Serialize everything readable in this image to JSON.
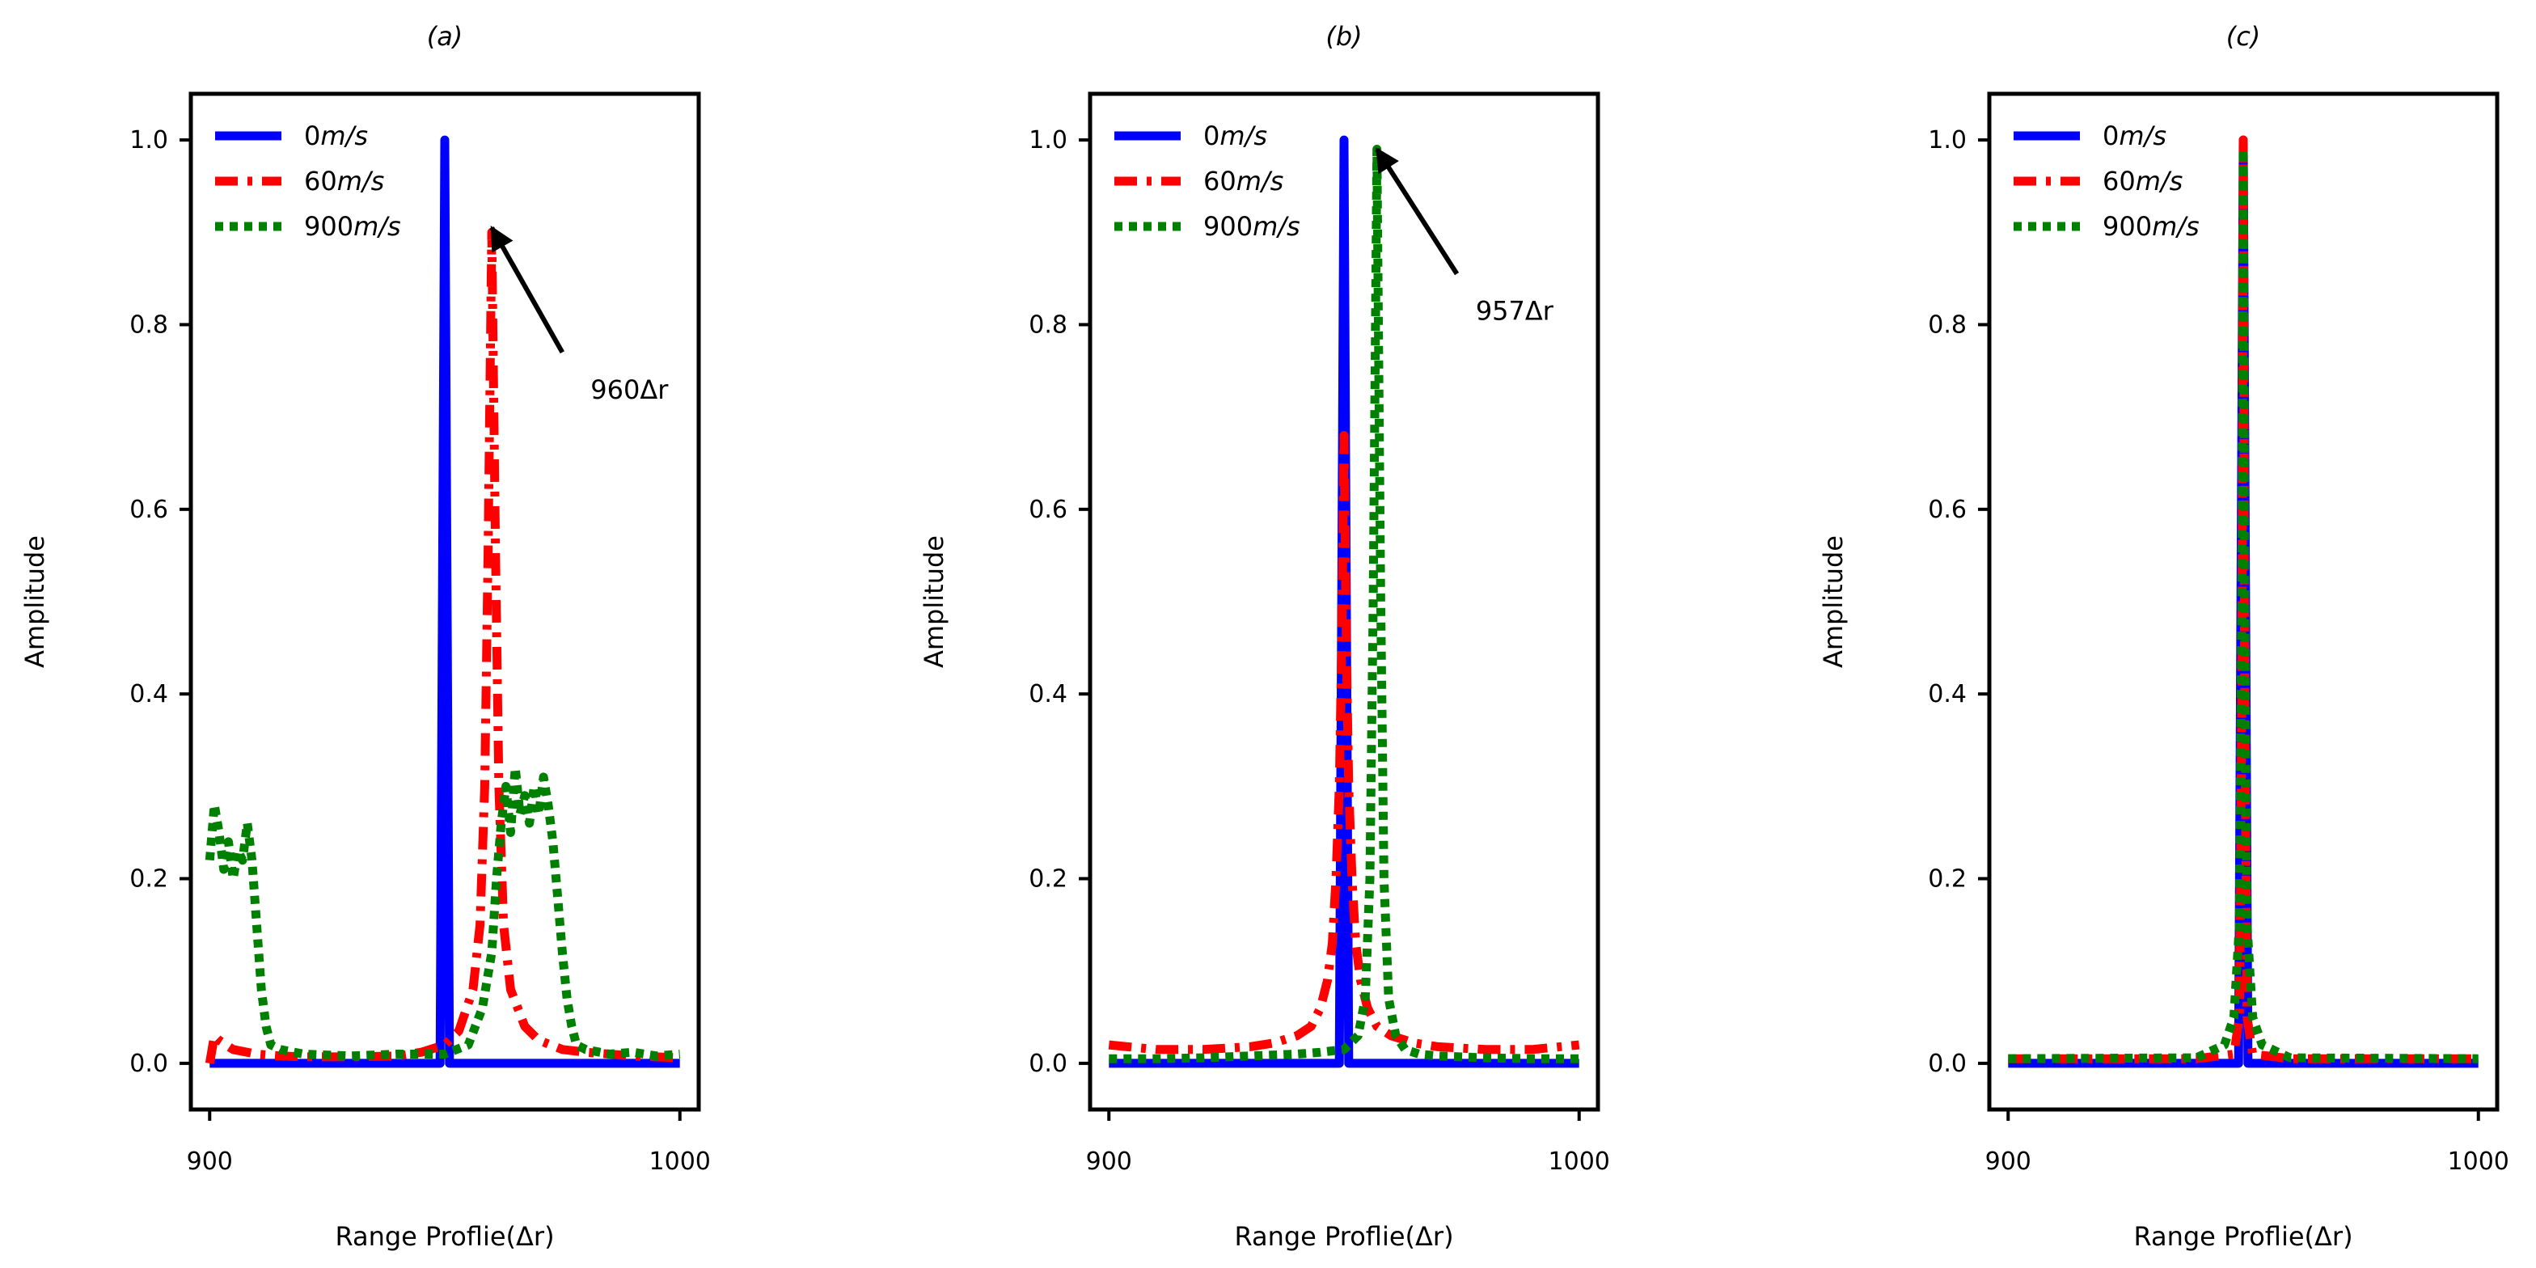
{
  "chart_data": [
    {
      "type": "line",
      "title": "(a)",
      "xlabel": "Range Proflie(Δr)",
      "ylabel": "Amplitude",
      "xlim": [
        896,
        1004
      ],
      "ylim": [
        -0.05,
        1.05
      ],
      "xticks": [
        900,
        1000
      ],
      "xtick_labels": [
        "900",
        "1000"
      ],
      "yticks": [
        0.0,
        0.2,
        0.4,
        0.6,
        0.8,
        1.0
      ],
      "ytick_labels": [
        "0.0",
        "0.2",
        "0.4",
        "0.6",
        "0.8",
        "1.0"
      ],
      "legend_position": "upper-left",
      "series": [
        {
          "name_parts": [
            "0",
            "m/s"
          ],
          "color": "#0000ff",
          "style": "solid",
          "x": [
            900,
            949,
            949.6,
            950,
            950.4,
            951,
            1000
          ],
          "y": [
            0,
            0,
            0.6,
            1.0,
            0.6,
            0,
            0
          ]
        },
        {
          "name_parts": [
            "60",
            "m/s"
          ],
          "color": "#ff0000",
          "style": "dashdot",
          "x": [
            900,
            901,
            902,
            905,
            910,
            915,
            920,
            930,
            940,
            945,
            950,
            953,
            956,
            957.5,
            958.5,
            959.2,
            960,
            960.8,
            961.5,
            962.5,
            964,
            967,
            970,
            975,
            980,
            985,
            990,
            1000
          ],
          "y": [
            0.0,
            0.03,
            0.025,
            0.015,
            0.01,
            0.008,
            0.007,
            0.007,
            0.008,
            0.012,
            0.02,
            0.035,
            0.08,
            0.15,
            0.3,
            0.55,
            0.9,
            0.55,
            0.3,
            0.15,
            0.08,
            0.04,
            0.025,
            0.015,
            0.012,
            0.01,
            0.008,
            0.006
          ]
        },
        {
          "name_parts": [
            "900",
            "m/s"
          ],
          "color": "#008000",
          "style": "dotted",
          "x": [
            900,
            901,
            902,
            903,
            904,
            905,
            906,
            907,
            908,
            909,
            910,
            911,
            912,
            913,
            915,
            920,
            930,
            940,
            950,
            955,
            958,
            960,
            961,
            962,
            963,
            964,
            965,
            966,
            967,
            968,
            969,
            970,
            971,
            972,
            973,
            974,
            975,
            976,
            977,
            978,
            980,
            985,
            990,
            995,
            1000
          ],
          "y": [
            0.22,
            0.28,
            0.25,
            0.21,
            0.24,
            0.2,
            0.23,
            0.22,
            0.26,
            0.22,
            0.15,
            0.08,
            0.04,
            0.02,
            0.015,
            0.01,
            0.008,
            0.01,
            0.01,
            0.02,
            0.06,
            0.12,
            0.2,
            0.26,
            0.3,
            0.25,
            0.32,
            0.27,
            0.29,
            0.26,
            0.3,
            0.27,
            0.31,
            0.28,
            0.24,
            0.18,
            0.12,
            0.07,
            0.04,
            0.02,
            0.015,
            0.01,
            0.012,
            0.008,
            0.01
          ]
        }
      ],
      "annotation": {
        "text": "960Δr",
        "xy": [
          960,
          0.905
        ],
        "xytext": [
          975,
          0.77
        ],
        "text_xy": [
          981,
          0.72
        ]
      }
    },
    {
      "type": "line",
      "title": "(b)",
      "xlabel": "Range Proflie(Δr)",
      "ylabel": "Amplitude",
      "xlim": [
        896,
        1004
      ],
      "ylim": [
        -0.05,
        1.05
      ],
      "xticks": [
        900,
        1000
      ],
      "xtick_labels": [
        "900",
        "1000"
      ],
      "yticks": [
        0.0,
        0.2,
        0.4,
        0.6,
        0.8,
        1.0
      ],
      "ytick_labels": [
        "0.0",
        "0.2",
        "0.4",
        "0.6",
        "0.8",
        "1.0"
      ],
      "legend_position": "upper-left",
      "series": [
        {
          "name_parts": [
            "0",
            "m/s"
          ],
          "color": "#0000ff",
          "style": "solid",
          "x": [
            900,
            949,
            949.6,
            950,
            950.4,
            951,
            1000
          ],
          "y": [
            0,
            0,
            0.6,
            1.0,
            0.6,
            0,
            0
          ]
        },
        {
          "name_parts": [
            "60",
            "m/s"
          ],
          "color": "#ff0000",
          "style": "dashdot",
          "x": [
            900,
            910,
            920,
            930,
            935,
            940,
            943,
            945,
            946.5,
            947.5,
            948.3,
            949,
            949.5,
            950,
            950.5,
            951,
            951.7,
            952.5,
            953.5,
            955,
            957,
            960,
            965,
            970,
            980,
            990,
            1000
          ],
          "y": [
            0.02,
            0.015,
            0.015,
            0.018,
            0.022,
            0.03,
            0.04,
            0.06,
            0.09,
            0.13,
            0.2,
            0.3,
            0.45,
            0.68,
            0.45,
            0.3,
            0.2,
            0.13,
            0.09,
            0.06,
            0.04,
            0.03,
            0.022,
            0.018,
            0.015,
            0.015,
            0.02
          ]
        },
        {
          "name_parts": [
            "900",
            "m/s"
          ],
          "color": "#008000",
          "style": "dotted",
          "x": [
            900,
            910,
            920,
            930,
            940,
            945,
            950,
            953,
            954.5,
            955.5,
            956.2,
            957,
            957.8,
            958.5,
            959.5,
            961,
            963,
            966,
            970,
            980,
            990,
            1000
          ],
          "y": [
            0.005,
            0.005,
            0.006,
            0.008,
            0.01,
            0.012,
            0.015,
            0.03,
            0.07,
            0.2,
            0.5,
            0.99,
            0.5,
            0.2,
            0.07,
            0.03,
            0.015,
            0.01,
            0.008,
            0.006,
            0.005,
            0.005
          ]
        }
      ],
      "annotation": {
        "text": "957Δr",
        "xy": [
          957,
          0.99
        ],
        "xytext": [
          974,
          0.855
        ],
        "text_xy": [
          978,
          0.805
        ]
      }
    },
    {
      "type": "line",
      "title": "(c)",
      "xlabel": "Range Proflie(Δr)",
      "ylabel": "Amplitude",
      "xlim": [
        896,
        1004
      ],
      "ylim": [
        -0.05,
        1.05
      ],
      "xticks": [
        900,
        1000
      ],
      "xtick_labels": [
        "900",
        "1000"
      ],
      "yticks": [
        0.0,
        0.2,
        0.4,
        0.6,
        0.8,
        1.0
      ],
      "ytick_labels": [
        "0.0",
        "0.2",
        "0.4",
        "0.6",
        "0.8",
        "1.0"
      ],
      "legend_position": "upper-left",
      "series": [
        {
          "name_parts": [
            "0",
            "m/s"
          ],
          "color": "#0000ff",
          "style": "solid",
          "x": [
            900,
            949,
            949.6,
            950,
            950.4,
            951,
            1000
          ],
          "y": [
            0,
            0,
            0.6,
            1.0,
            0.6,
            0,
            0
          ]
        },
        {
          "name_parts": [
            "60",
            "m/s"
          ],
          "color": "#ff0000",
          "style": "dashdot",
          "x": [
            900,
            940,
            948,
            949.2,
            949.7,
            950,
            950.3,
            950.8,
            952,
            960,
            1000
          ],
          "y": [
            0.005,
            0.005,
            0.01,
            0.05,
            0.4,
            1.0,
            0.4,
            0.05,
            0.01,
            0.005,
            0.005
          ]
        },
        {
          "name_parts": [
            "900",
            "m/s"
          ],
          "color": "#008000",
          "style": "dotted",
          "x": [
            900,
            940,
            946,
            948,
            949.2,
            949.7,
            950,
            950.3,
            950.8,
            952,
            954,
            960,
            1000
          ],
          "y": [
            0.005,
            0.006,
            0.02,
            0.05,
            0.15,
            0.5,
            0.99,
            0.5,
            0.15,
            0.05,
            0.02,
            0.006,
            0.005
          ]
        }
      ]
    }
  ]
}
